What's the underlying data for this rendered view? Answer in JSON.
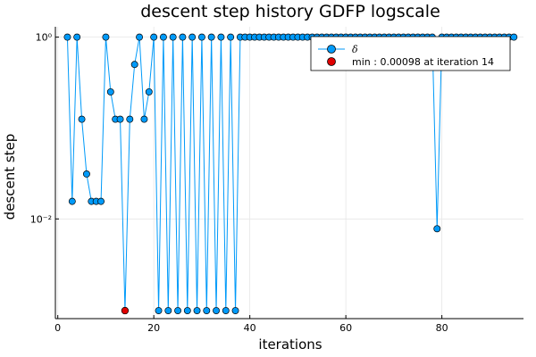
{
  "chart_data": {
    "type": "line",
    "title": "descent step history GDFP logscale",
    "xlabel": "iterations",
    "ylabel": "descent step",
    "y_scale": "log",
    "xlim": [
      -0.5,
      97
    ],
    "ylim": [
      0.0008,
      1.3
    ],
    "x_ticks": [
      0,
      20,
      40,
      60,
      80
    ],
    "x_tick_labels": [
      "0",
      "20",
      "40",
      "60",
      "80"
    ],
    "y_ticks": [
      0.01,
      1
    ],
    "y_tick_labels": [
      "10⁻²",
      "10⁰"
    ],
    "grid": true,
    "legend_position": "top-right",
    "colors": {
      "series": "#009AF9",
      "min_marker": "#E00000",
      "marker_edge": "#000000"
    },
    "series": [
      {
        "name": "δ",
        "x": [
          2,
          3,
          4,
          5,
          6,
          7,
          8,
          9,
          10,
          11,
          12,
          13,
          14,
          15,
          16,
          17,
          18,
          19,
          20,
          21,
          22,
          23,
          24,
          25,
          26,
          27,
          28,
          29,
          30,
          31,
          32,
          33,
          34,
          35,
          36,
          37,
          38,
          39,
          40,
          41,
          42,
          43,
          44,
          45,
          46,
          47,
          48,
          49,
          50,
          51,
          52,
          53,
          54,
          55,
          56,
          57,
          58,
          59,
          60,
          61,
          62,
          63,
          64,
          65,
          66,
          67,
          68,
          69,
          70,
          71,
          72,
          73,
          74,
          75,
          76,
          77,
          78,
          79,
          80,
          81,
          82,
          83,
          84,
          85,
          86,
          87,
          88,
          89,
          90,
          91,
          92,
          93,
          94,
          95
        ],
        "y": [
          1,
          0.0156,
          1,
          0.125,
          0.0312,
          0.0156,
          0.0156,
          0.0156,
          1,
          0.25,
          0.125,
          0.125,
          0.00098,
          0.125,
          0.5,
          1,
          0.125,
          0.25,
          1,
          0.00098,
          1,
          0.00098,
          1,
          0.00098,
          1,
          0.00098,
          1,
          0.00098,
          1,
          0.00098,
          1,
          0.00098,
          1,
          0.00098,
          1,
          0.00098,
          1,
          1,
          1,
          1,
          1,
          1,
          1,
          1,
          1,
          1,
          1,
          1,
          1,
          1,
          1,
          1,
          1,
          1,
          1,
          1,
          1,
          1,
          1,
          1,
          1,
          1,
          1,
          1,
          1,
          1,
          1,
          1,
          1,
          1,
          1,
          1,
          1,
          1,
          1,
          1,
          1,
          0.0078,
          1,
          1,
          1,
          1,
          1,
          1,
          1,
          1,
          1,
          1,
          1,
          1,
          1,
          1,
          1,
          1
        ]
      },
      {
        "name": "min : 0.00098 at iteration 14",
        "x": [
          14
        ],
        "y": [
          0.00098
        ]
      }
    ]
  }
}
